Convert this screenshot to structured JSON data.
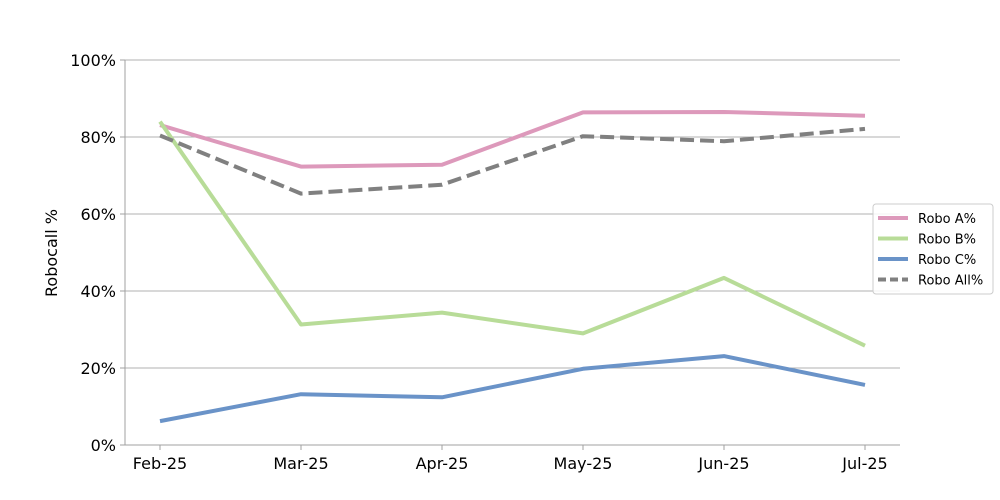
{
  "chart_data": {
    "type": "line",
    "title": "",
    "xlabel": "",
    "ylabel": "Robocall %",
    "ylim": [
      0,
      100
    ],
    "y_ticks": [
      "0%",
      "20%",
      "40%",
      "60%",
      "80%",
      "100%"
    ],
    "y_tick_values": [
      0,
      20,
      40,
      60,
      80,
      100
    ],
    "categories": [
      "Feb-25",
      "Mar-25",
      "Apr-25",
      "May-25",
      "Jun-25",
      "Jul-25"
    ],
    "grid": "horizontal",
    "legend_position": "right",
    "series": [
      {
        "name": "Robo A%",
        "color": "#dd99bb",
        "style": "solid",
        "values": [
          83.1,
          72.3,
          72.8,
          86.4,
          86.5,
          85.5
        ]
      },
      {
        "name": "Robo B%",
        "color": "#b8dc98",
        "style": "solid",
        "values": [
          84.0,
          31.3,
          34.4,
          29.0,
          43.4,
          25.8
        ]
      },
      {
        "name": "Robo C%",
        "color": "#6a93c8",
        "style": "solid",
        "values": [
          6.2,
          13.2,
          12.4,
          19.8,
          23.1,
          15.6
        ]
      },
      {
        "name": "Robo All%",
        "color": "#808080",
        "style": "dashed",
        "values": [
          80.4,
          65.3,
          67.6,
          80.2,
          78.9,
          82.1
        ]
      }
    ]
  }
}
